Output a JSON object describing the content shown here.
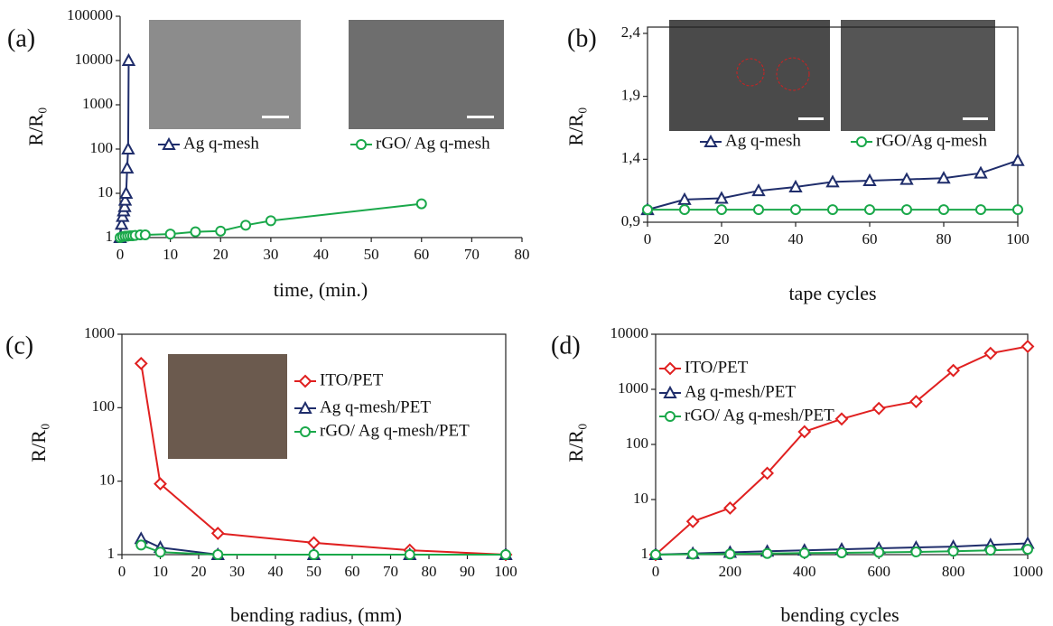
{
  "chart_data": [
    {
      "type": "line",
      "panel_label": "(a)",
      "x_label": "time, (min.)",
      "y_label": "R/R₀",
      "log_y": true,
      "xlim": [
        0,
        80
      ],
      "xticks": [
        0,
        10,
        20,
        30,
        40,
        50,
        60,
        70,
        80
      ],
      "ylim": [
        1,
        100000
      ],
      "yticks": [
        1,
        10,
        100,
        1000,
        10000,
        100000
      ],
      "series": [
        {
          "name": "Ag q-mesh",
          "color": "#1f2d6b",
          "marker": "triangle",
          "x": [
            0,
            0.3,
            0.5,
            0.7,
            0.9,
            1.0,
            1.2,
            1.4,
            1.6,
            1.7
          ],
          "values": [
            1,
            2,
            3,
            4,
            5,
            7,
            10,
            37,
            100,
            10000
          ]
        },
        {
          "name": "rGO/ Ag q-mesh",
          "color": "#1aa84a",
          "marker": "circle",
          "x": [
            0,
            0.5,
            1,
            1.5,
            2,
            2.5,
            3,
            4,
            5,
            10,
            15,
            20,
            25,
            30,
            60
          ],
          "values": [
            1,
            1.05,
            1.07,
            1.08,
            1.1,
            1.1,
            1.12,
            1.15,
            1.15,
            1.2,
            1.35,
            1.4,
            1.9,
            2.4,
            5.8
          ]
        }
      ]
    },
    {
      "type": "line",
      "panel_label": "(b)",
      "x_label": "tape cycles",
      "y_label": "R/R₀",
      "log_y": false,
      "xlim": [
        0,
        100
      ],
      "xticks": [
        0,
        20,
        40,
        60,
        80,
        100
      ],
      "ylim": [
        0.9,
        2.45
      ],
      "yticks": [
        {
          "value": 0.9,
          "label": "0,9"
        },
        {
          "value": 1.4,
          "label": "1,4"
        },
        {
          "value": 1.9,
          "label": "1,9"
        },
        {
          "value": 2.4,
          "label": "2,4"
        }
      ],
      "x": [
        0,
        10,
        20,
        30,
        40,
        50,
        60,
        70,
        80,
        90,
        100
      ],
      "series": [
        {
          "name": "Ag q-mesh",
          "color": "#1f2d6b",
          "marker": "triangle",
          "values": [
            1.0,
            1.08,
            1.09,
            1.15,
            1.18,
            1.22,
            1.23,
            1.24,
            1.25,
            1.29,
            1.39
          ]
        },
        {
          "name": "rGO/Ag q-mesh",
          "color": "#1aa84a",
          "marker": "circle",
          "values": [
            1.0,
            1.0,
            1.0,
            1.0,
            1.0,
            1.0,
            1.0,
            1.0,
            1.0,
            1.0,
            1.0
          ]
        }
      ]
    },
    {
      "type": "line",
      "panel_label": "(c)",
      "x_label": "bending radius, (mm)",
      "y_label": "R/R₀",
      "log_y": true,
      "xlim": [
        0,
        100
      ],
      "xticks": [
        0,
        10,
        20,
        30,
        40,
        50,
        60,
        70,
        80,
        90,
        100
      ],
      "ylim": [
        1,
        1000
      ],
      "yticks": [
        1,
        10,
        100,
        1000
      ],
      "x": [
        5,
        10,
        25,
        50,
        75,
        100
      ],
      "series": [
        {
          "name": "ITO/PET",
          "color": "#e02020",
          "marker": "diamond",
          "values": [
            400,
            9.2,
            1.95,
            1.45,
            1.15,
            1.0
          ]
        },
        {
          "name": "Ag q-mesh/PET",
          "color": "#1f2d6b",
          "marker": "triangle",
          "values": [
            1.65,
            1.25,
            1.0,
            1.0,
            1.0,
            1.0
          ]
        },
        {
          "name": "rGO/ Ag q-mesh/PET",
          "color": "#1aa84a",
          "marker": "circle",
          "values": [
            1.35,
            1.08,
            1.0,
            1.0,
            1.0,
            1.0
          ]
        }
      ]
    },
    {
      "type": "line",
      "panel_label": "(d)",
      "x_label": "bending cycles",
      "y_label": "R/R₀",
      "log_y": true,
      "xlim": [
        0,
        1000
      ],
      "xticks": [
        0,
        200,
        400,
        600,
        800,
        1000
      ],
      "ylim": [
        1,
        10000
      ],
      "yticks": [
        1,
        10,
        100,
        1000,
        10000
      ],
      "x": [
        0,
        100,
        200,
        300,
        400,
        500,
        600,
        700,
        800,
        900,
        1000
      ],
      "series": [
        {
          "name": "ITO/PET",
          "color": "#e02020",
          "marker": "diamond",
          "values": [
            1,
            4,
            7,
            30,
            170,
            290,
            450,
            600,
            2200,
            4500,
            6000
          ]
        },
        {
          "name": "Ag q-mesh/PET",
          "color": "#1f2d6b",
          "marker": "triangle",
          "values": [
            1,
            1.05,
            1.1,
            1.15,
            1.2,
            1.25,
            1.3,
            1.35,
            1.4,
            1.5,
            1.6
          ]
        },
        {
          "name": "rGO/ Ag q-mesh/PET",
          "color": "#1aa84a",
          "marker": "circle",
          "values": [
            1,
            1.02,
            1.03,
            1.05,
            1.07,
            1.08,
            1.1,
            1.12,
            1.15,
            1.2,
            1.25
          ]
        }
      ]
    }
  ]
}
